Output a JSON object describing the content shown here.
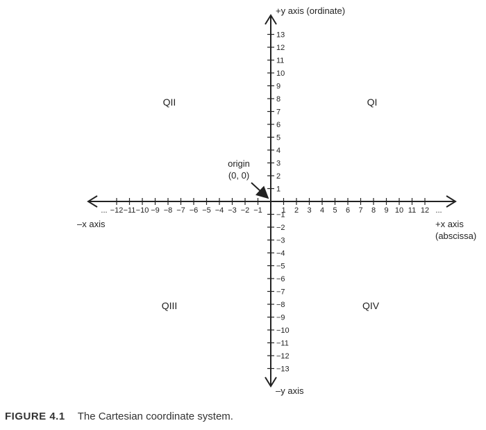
{
  "diagram": {
    "x_ticks": [
      -12,
      -11,
      -10,
      -9,
      -8,
      -7,
      -6,
      -5,
      -4,
      -3,
      -2,
      -1,
      1,
      2,
      3,
      4,
      5,
      6,
      7,
      8,
      9,
      10,
      11,
      12
    ],
    "y_ticks": [
      13,
      12,
      11,
      10,
      9,
      8,
      7,
      6,
      5,
      4,
      3,
      2,
      1,
      -1,
      -2,
      -3,
      -4,
      -5,
      -6,
      -7,
      -8,
      -9,
      -10,
      -11,
      -12,
      -13
    ],
    "x_ellipsis": "...",
    "axis_labels": {
      "pos_y": "+y axis  (ordinate)",
      "neg_y": "–y axis",
      "neg_x": "–x axis",
      "pos_x_line1": "+x axis",
      "pos_x_line2": "(abscissa)"
    },
    "quadrants": {
      "q1": "QI",
      "q2": "QII",
      "q3": "QIII",
      "q4": "QIV"
    },
    "origin": {
      "line1": "origin",
      "line2": "(0, 0)"
    }
  },
  "caption": {
    "label": "FIGURE 4.1",
    "text": "The Cartesian coordinate system."
  },
  "colors": {
    "ink": "#222222"
  }
}
